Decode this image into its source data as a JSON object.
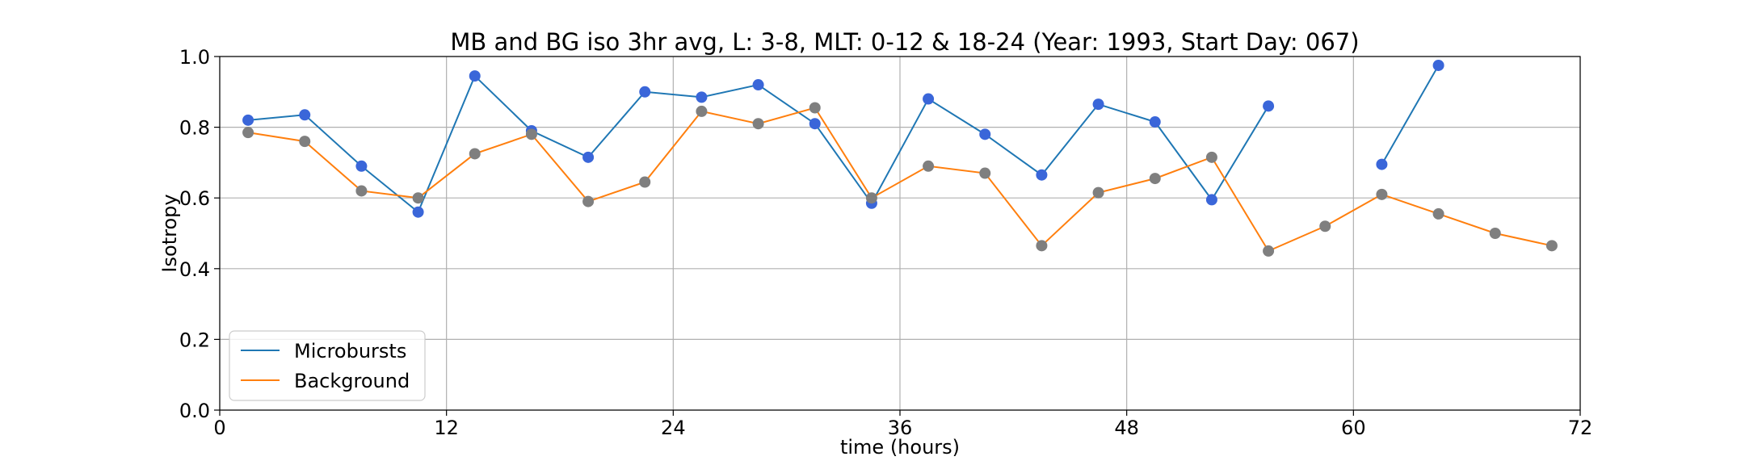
{
  "chart_data": {
    "type": "line",
    "title": "MB and BG iso 3hr avg, L: 3-8, MLT: 0-12 & 18-24 (Year: 1993, Start Day: 067)",
    "xlabel": "time (hours)",
    "ylabel": "Isotropy",
    "xlim": [
      0,
      72
    ],
    "ylim": [
      0,
      1.0
    ],
    "xticks": [
      0,
      12,
      24,
      36,
      48,
      60,
      72
    ],
    "yticks": [
      0.0,
      0.2,
      0.4,
      0.6,
      0.8,
      1.0
    ],
    "xtick_labels": [
      "0",
      "12",
      "24",
      "36",
      "48",
      "60",
      "72"
    ],
    "ytick_labels": [
      "0.0",
      "0.2",
      "0.4",
      "0.6",
      "0.8",
      "1.0"
    ],
    "grid": true,
    "legend_position": "lower-left",
    "series": [
      {
        "name": "Microbursts",
        "line_color": "#1f77b4",
        "marker_color": "#3a66d9",
        "x": [
          1.5,
          4.5,
          7.5,
          10.5,
          13.5,
          16.5,
          19.5,
          22.5,
          25.5,
          28.5,
          31.5,
          34.5,
          37.5,
          40.5,
          43.5,
          46.5,
          49.5,
          52.5,
          55.5,
          58.5,
          61.5,
          64.5,
          67.5,
          70.5
        ],
        "y": [
          0.82,
          0.835,
          0.69,
          0.56,
          0.945,
          0.79,
          0.715,
          0.9,
          0.885,
          0.92,
          0.81,
          0.585,
          0.88,
          0.78,
          0.665,
          0.865,
          0.815,
          0.595,
          0.86,
          null,
          0.695,
          0.975,
          null,
          null
        ]
      },
      {
        "name": "Background",
        "line_color": "#ff7f0e",
        "marker_color": "#7f7f7f",
        "x": [
          1.5,
          4.5,
          7.5,
          10.5,
          13.5,
          16.5,
          19.5,
          22.5,
          25.5,
          28.5,
          31.5,
          34.5,
          37.5,
          40.5,
          43.5,
          46.5,
          49.5,
          52.5,
          55.5,
          58.5,
          61.5,
          64.5,
          67.5,
          70.5
        ],
        "y": [
          0.785,
          0.76,
          0.62,
          0.6,
          0.725,
          0.78,
          0.59,
          0.645,
          0.845,
          0.81,
          0.855,
          0.6,
          0.69,
          0.67,
          0.465,
          0.615,
          0.655,
          0.715,
          0.45,
          0.52,
          0.61,
          0.555,
          0.5,
          0.465
        ]
      }
    ]
  }
}
